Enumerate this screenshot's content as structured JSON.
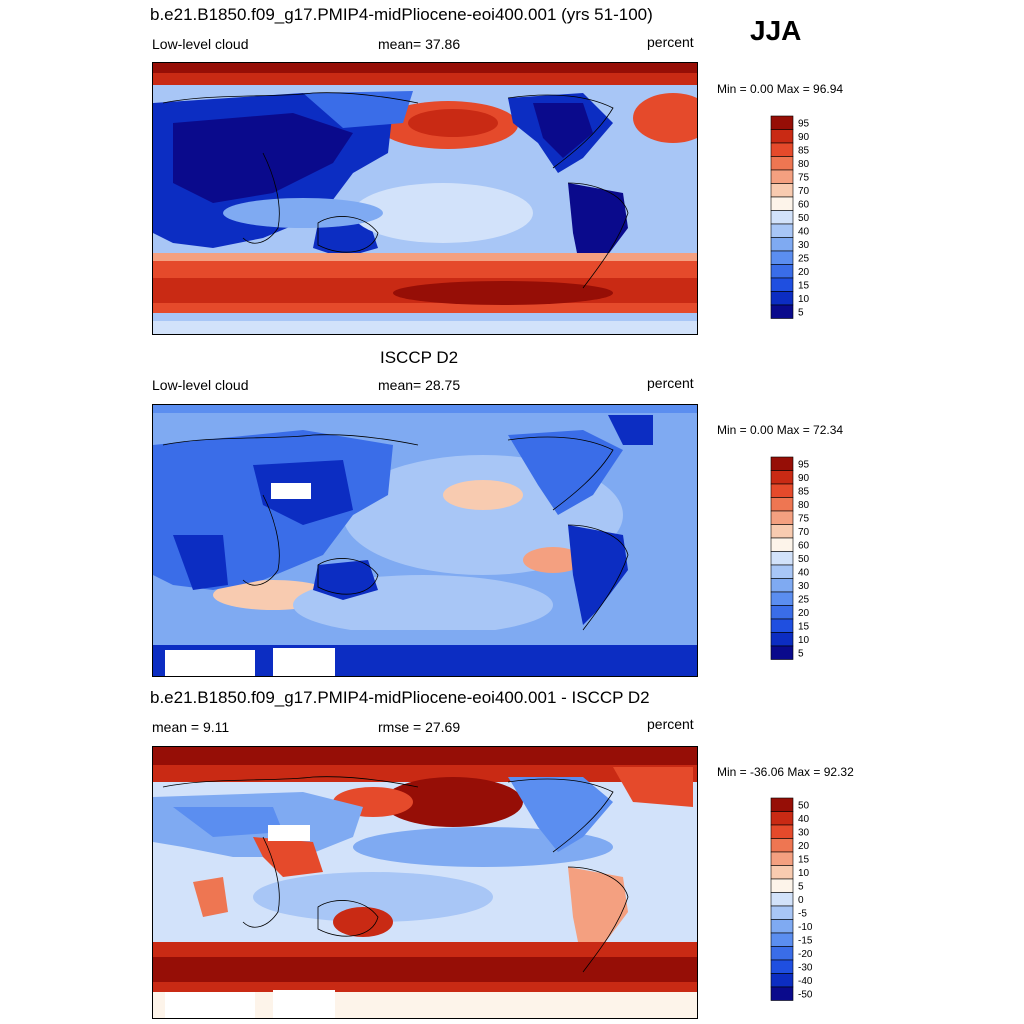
{
  "season": "JJA",
  "panels": [
    {
      "title": "b.e21.B1850.f09_g17.PMIP4-midPliocene-eoi400.001 (yrs 51-100)",
      "left_label": "Low-level cloud",
      "center_label": "mean=  37.86",
      "units": "percent",
      "minmax": "Min =   0.00 Max =  96.94",
      "colorbar_labels": [
        "95",
        "90",
        "85",
        "80",
        "75",
        "70",
        "60",
        "50",
        "40",
        "30",
        "25",
        "20",
        "15",
        "10",
        "5"
      ]
    },
    {
      "title": "ISCCP D2",
      "left_label": "Low-level cloud",
      "center_label": "mean=  28.75",
      "units": "percent",
      "minmax": "Min =   0.00 Max =  72.34",
      "colorbar_labels": [
        "95",
        "90",
        "85",
        "80",
        "75",
        "70",
        "60",
        "50",
        "40",
        "30",
        "25",
        "20",
        "15",
        "10",
        "5"
      ]
    },
    {
      "title": "b.e21.B1850.f09_g17.PMIP4-midPliocene-eoi400.001 - ISCCP D2",
      "left_label": "mean =   9.11",
      "center_label": "rmse =  27.69",
      "units": "percent",
      "minmax": "Min = -36.06 Max =  92.32",
      "colorbar_labels": [
        "50",
        "40",
        "30",
        "20",
        "15",
        "10",
        "5",
        "0",
        "-5",
        "-10",
        "-15",
        "-20",
        "-30",
        "-40",
        "-50"
      ]
    }
  ],
  "chart_data": [
    {
      "type": "heatmap",
      "title": "b.e21.B1850.f09_g17.PMIP4-midPliocene-eoi400.001 (yrs 51-100)",
      "variable": "Low-level cloud",
      "units": "percent",
      "mean": 37.86,
      "min": 0.0,
      "max": 96.94,
      "contour_levels": [
        5,
        10,
        15,
        20,
        25,
        30,
        40,
        50,
        60,
        70,
        75,
        80,
        85,
        90,
        95
      ]
    },
    {
      "type": "heatmap",
      "title": "ISCCP D2",
      "variable": "Low-level cloud",
      "units": "percent",
      "mean": 28.75,
      "min": 0.0,
      "max": 72.34,
      "contour_levels": [
        5,
        10,
        15,
        20,
        25,
        30,
        40,
        50,
        60,
        70,
        75,
        80,
        85,
        90,
        95
      ]
    },
    {
      "type": "heatmap",
      "title": "b.e21.B1850.f09_g17.PMIP4-midPliocene-eoi400.001 - ISCCP D2",
      "units": "percent",
      "mean": 9.11,
      "rmse": 27.69,
      "min": -36.06,
      "max": 92.32,
      "contour_levels": [
        -50,
        -40,
        -30,
        -20,
        -15,
        -10,
        -5,
        0,
        5,
        10,
        15,
        20,
        30,
        40,
        50
      ]
    }
  ],
  "colors": {
    "abs_scale": [
      "#0a0a8c",
      "#0c2dc2",
      "#1f4fe0",
      "#3a6de8",
      "#5b8ef0",
      "#7faaf2",
      "#a8c6f6",
      "#d2e2fa",
      "#fdf4ea",
      "#f8cbb0",
      "#f4a080",
      "#ee7652",
      "#e54a2b",
      "#c92a14",
      "#960e06"
    ],
    "diff_scale": [
      "#0a0a8c",
      "#0c2dc2",
      "#1f4fe0",
      "#3a6de8",
      "#5b8ef0",
      "#7faaf2",
      "#a8c6f6",
      "#d2e2fa",
      "#fdf4ea",
      "#f8cbb0",
      "#f4a080",
      "#ee7652",
      "#e54a2b",
      "#c92a14",
      "#960e06"
    ]
  }
}
